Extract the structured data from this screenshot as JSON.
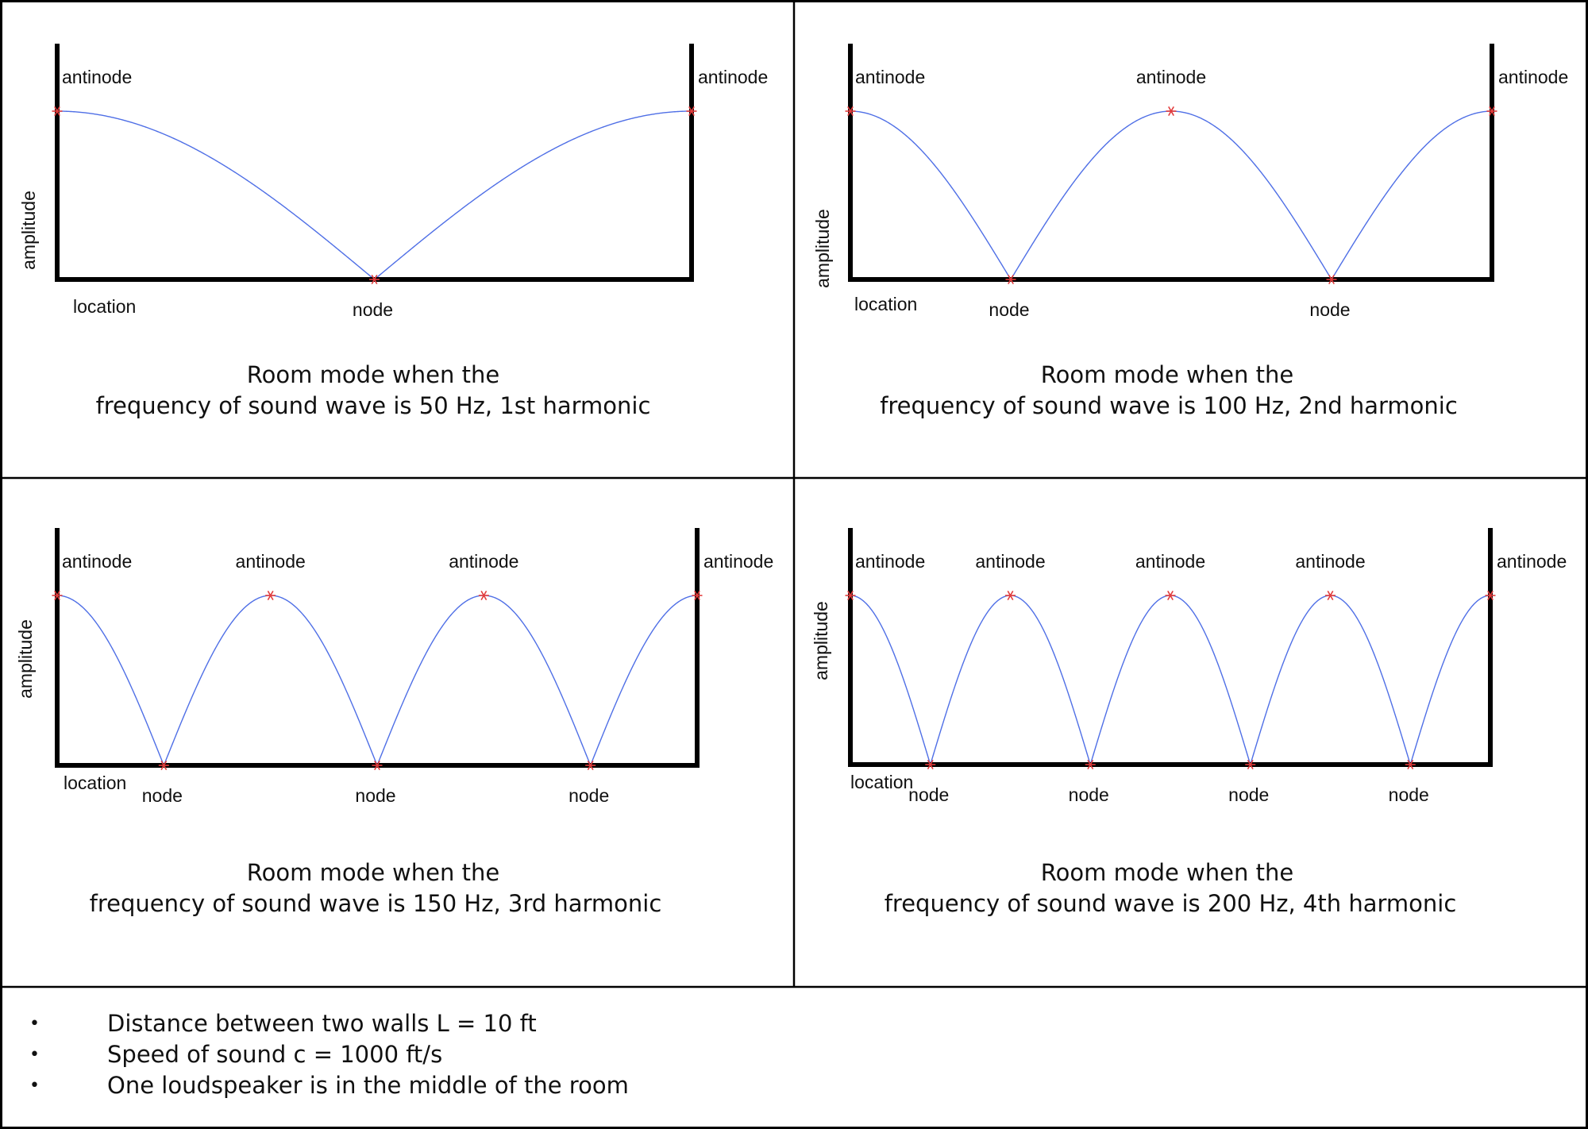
{
  "colors": {
    "frame": "#000000",
    "wave": "#4f6fe6",
    "marker": "#e23c3c",
    "text": "#111111"
  },
  "panels": [
    {
      "harmonic": 1,
      "frequency_hz": 50,
      "y_label": "amplitude",
      "x_label": "location",
      "antinode_label": "antinode",
      "node_label": "node",
      "caption_line1": "Room mode when the",
      "caption_line2": "frequency of sound wave is 50 Hz, 1st harmonic"
    },
    {
      "harmonic": 2,
      "frequency_hz": 100,
      "y_label": "amplitude",
      "x_label": "location",
      "antinode_label": "antinode",
      "node_label": "node",
      "caption_line1": "Room mode when the",
      "caption_line2": "frequency of sound wave is 100 Hz, 2nd harmonic"
    },
    {
      "harmonic": 3,
      "frequency_hz": 150,
      "y_label": "amplitude",
      "x_label": "location",
      "antinode_label": "antinode",
      "node_label": "node",
      "caption_line1": "Room mode when the",
      "caption_line2": "frequency of sound wave is 150 Hz, 3rd harmonic"
    },
    {
      "harmonic": 4,
      "frequency_hz": 200,
      "y_label": "amplitude",
      "x_label": "location",
      "antinode_label": "antinode",
      "node_label": "node",
      "caption_line1": "Room mode when the",
      "caption_line2": "frequency of sound wave is 200 Hz, 4th harmonic"
    }
  ],
  "notes": [
    "Distance between two walls L = 10 ft",
    "Speed of sound c = 1000 ft/s",
    "One loudspeaker is in the middle of the room"
  ],
  "bullet_symbol": "•"
}
